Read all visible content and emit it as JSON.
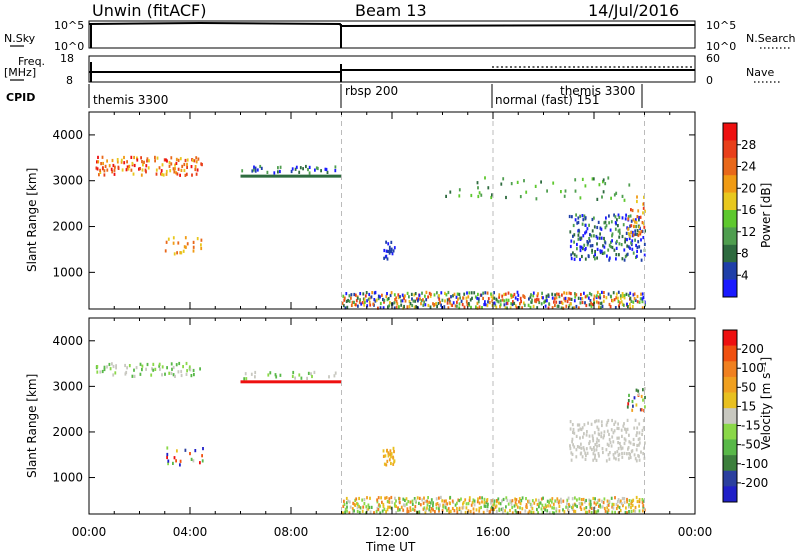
{
  "header": {
    "station": "Unwin (fitACF)",
    "beam": "Beam 13",
    "date": "14/Jul/2016"
  },
  "top_panels": {
    "nsky_label": "N.Sky",
    "nsky_ticks": [
      "10^5",
      "10^0"
    ],
    "nsearch_label": "N.Search",
    "nsearch_ticks": [
      "10^5",
      "10^0"
    ],
    "freq_label": "Freq.",
    "freq_unit": "[MHz]",
    "freq_ticks": [
      "18",
      "8"
    ],
    "nave_label": "Nave",
    "nave_ticks": [
      "60",
      "0"
    ],
    "cpid_label": "CPID",
    "cpid_segments": [
      {
        "label": "themis 3300",
        "start_h": 0
      },
      {
        "label": "rbsp 200",
        "start_h": 10
      },
      {
        "label": "normal (fast) 151",
        "start_h": 16
      },
      {
        "label": "themis 3300",
        "start_h": 22
      }
    ]
  },
  "x_axis": {
    "label": "Time UT",
    "ticks": [
      "00:00",
      "04:00",
      "08:00",
      "12:00",
      "16:00",
      "20:00",
      "00:00"
    ],
    "range_h": [
      0,
      24
    ]
  },
  "colors": {
    "power": [
      "#1a1aff",
      "#1f3fa8",
      "#2e6b3f",
      "#4f9e4f",
      "#5ec82e",
      "#e8c81e",
      "#f09b14",
      "#e8681a",
      "#e83f1a",
      "#ee1010"
    ],
    "velocity": [
      "#2020c8",
      "#2b3f9e",
      "#3c7f3c",
      "#58b848",
      "#8ad848",
      "#c8c8c0",
      "#e8c020",
      "#f0a020",
      "#f08020",
      "#f05010",
      "#ee1010"
    ]
  },
  "chart_data": [
    {
      "type": "heatmap",
      "title": "Power",
      "ylabel": "Slant Range [km]",
      "ylim": [
        200,
        4500
      ],
      "yticks": [
        1000,
        2000,
        3000,
        4000
      ],
      "colorbar": {
        "label": "Power [dB]",
        "ticks": [
          "28",
          "24",
          "20",
          "16",
          "12",
          "8",
          "4"
        ],
        "range": [
          0,
          32
        ]
      },
      "scatter_features": [
        {
          "t0": 0.2,
          "t1": 4.5,
          "r0": 3150,
          "r1": 3550,
          "level_range": [
            5,
            9
          ],
          "density": 0.5
        },
        {
          "t0": 6.0,
          "t1": 9.8,
          "r0": 3200,
          "r1": 3350,
          "level_range": [
            0,
            3
          ],
          "density": 0.35
        },
        {
          "t0": 3.0,
          "t1": 4.5,
          "r0": 1400,
          "r1": 1800,
          "level_range": [
            5,
            7
          ],
          "density": 0.25
        },
        {
          "t0": 11.6,
          "t1": 12.1,
          "r0": 1300,
          "r1": 1700,
          "level_range": [
            0,
            1
          ],
          "density": 0.6
        },
        {
          "t0": 10.0,
          "t1": 22.0,
          "r0": 250,
          "r1": 600,
          "level_range": [
            0,
            8
          ],
          "density": 0.85
        },
        {
          "t0": 19.0,
          "t1": 22.0,
          "r0": 1300,
          "r1": 2300,
          "level_range": [
            0,
            3
          ],
          "density": 0.55
        },
        {
          "t0": 21.3,
          "t1": 22.0,
          "r0": 1800,
          "r1": 2700,
          "level_range": [
            5,
            8
          ],
          "density": 0.5
        },
        {
          "t0": 14.0,
          "t1": 21.5,
          "r0": 2600,
          "r1": 3100,
          "level_range": [
            2,
            4
          ],
          "density": 0.08
        }
      ],
      "line_features": [
        {
          "t0": 6.0,
          "t1": 10.0,
          "range_km": 3100,
          "color_index": 2
        }
      ]
    },
    {
      "type": "heatmap",
      "title": "Velocity",
      "ylabel": "Slant Range [km]",
      "ylim": [
        200,
        4500
      ],
      "yticks": [
        1000,
        2000,
        3000,
        4000
      ],
      "colorbar": {
        "label": "Velocity [m s⁻¹]",
        "ticks": [
          "200",
          "100",
          "50",
          "15",
          "-15",
          "-50",
          "-100",
          "-200"
        ],
        "range": [
          -250,
          250
        ]
      },
      "scatter_features": [
        {
          "t0": 0.2,
          "t1": 4.5,
          "r0": 3250,
          "r1": 3550,
          "level_range": [
            3,
            5
          ],
          "density": 0.45
        },
        {
          "t0": 6.0,
          "t1": 9.8,
          "r0": 3200,
          "r1": 3350,
          "level_range": [
            3,
            5
          ],
          "density": 0.3
        },
        {
          "t0": 3.0,
          "t1": 4.5,
          "r0": 1300,
          "r1": 1700,
          "level_range": [
            0,
            10
          ],
          "density": 0.25
        },
        {
          "t0": 11.6,
          "t1": 12.1,
          "r0": 1300,
          "r1": 1700,
          "level_range": [
            6,
            7
          ],
          "density": 0.6
        },
        {
          "t0": 10.0,
          "t1": 22.0,
          "r0": 250,
          "r1": 600,
          "level_range": [
            3,
            8
          ],
          "density": 0.85
        },
        {
          "t0": 19.0,
          "t1": 22.0,
          "r0": 1400,
          "r1": 2300,
          "level_range": [
            5,
            5
          ],
          "density": 0.55
        },
        {
          "t0": 21.3,
          "t1": 22.0,
          "r0": 2500,
          "r1": 3000,
          "level_range": [
            0,
            10
          ],
          "density": 0.4
        }
      ],
      "line_features": [
        {
          "t0": 6.0,
          "t1": 10.0,
          "range_km": 3100,
          "color_index": 10
        }
      ]
    }
  ]
}
